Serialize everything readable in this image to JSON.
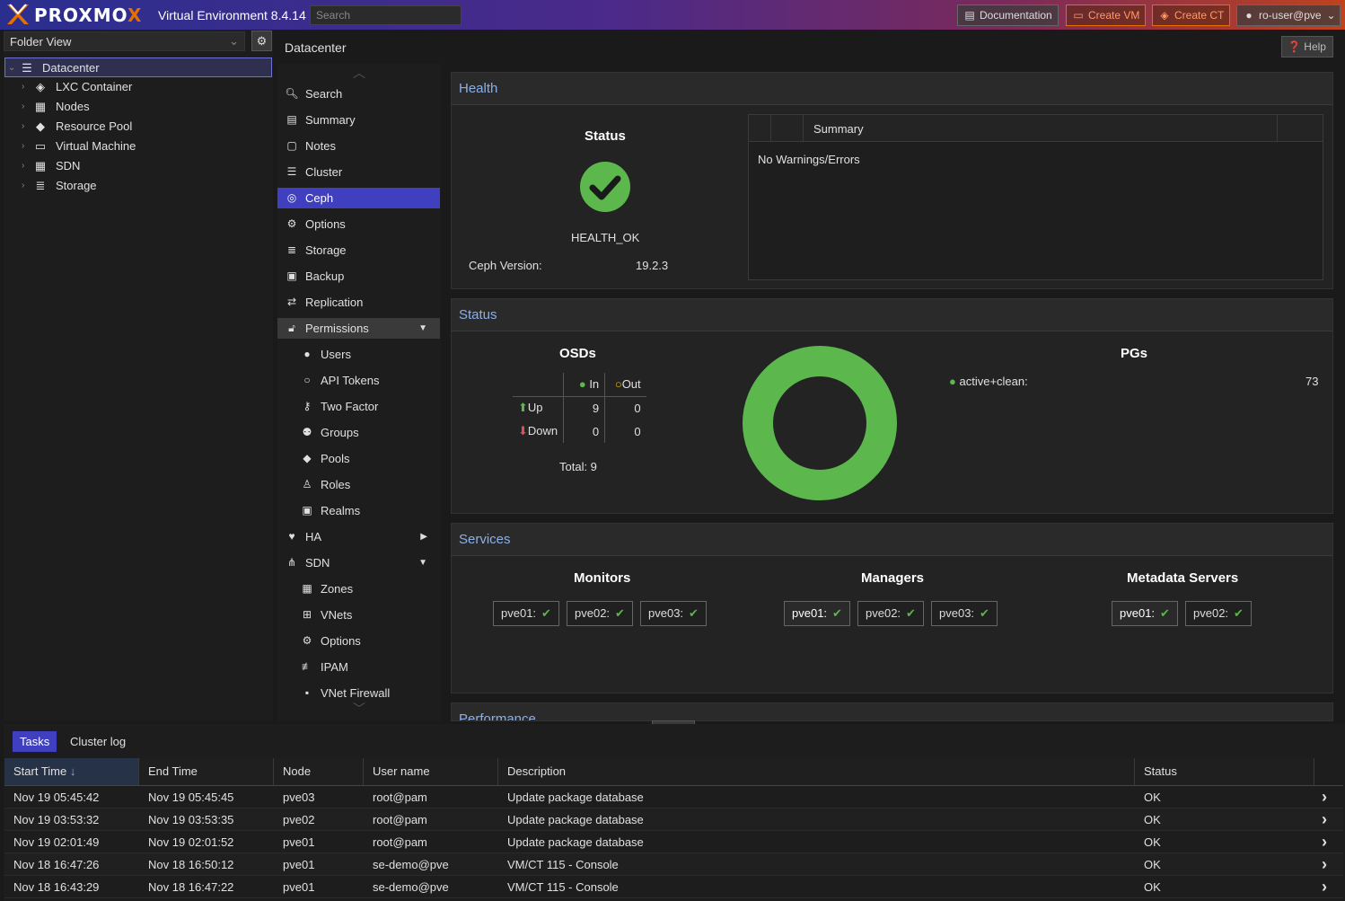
{
  "header": {
    "brand": "PROXMOX",
    "version": "Virtual Environment 8.4.14",
    "search_placeholder": "Search",
    "documentation": "Documentation",
    "create_vm": "Create VM",
    "create_ct": "Create CT",
    "user": "ro-user@pve"
  },
  "tree": {
    "view": "Folder View",
    "items": [
      {
        "label": "Datacenter",
        "icon": "server-rack-icon"
      },
      {
        "label": "LXC Container",
        "icon": "cube-icon"
      },
      {
        "label": "Nodes",
        "icon": "building-icon"
      },
      {
        "label": "Resource Pool",
        "icon": "tags-icon"
      },
      {
        "label": "Virtual Machine",
        "icon": "desktop-icon"
      },
      {
        "label": "SDN",
        "icon": "grid-icon"
      },
      {
        "label": "Storage",
        "icon": "database-icon"
      }
    ]
  },
  "content": {
    "title": "Datacenter",
    "help": "Help"
  },
  "nav": {
    "items": [
      {
        "label": "Search",
        "icon": "search-icon"
      },
      {
        "label": "Summary",
        "icon": "book-icon"
      },
      {
        "label": "Notes",
        "icon": "note-icon"
      },
      {
        "label": "Cluster",
        "icon": "server-icon"
      },
      {
        "label": "Ceph",
        "icon": "ceph-icon"
      },
      {
        "label": "Options",
        "icon": "gear-icon"
      },
      {
        "label": "Storage",
        "icon": "database-icon"
      },
      {
        "label": "Backup",
        "icon": "floppy-icon"
      },
      {
        "label": "Replication",
        "icon": "retweet-icon"
      },
      {
        "label": "Permissions",
        "icon": "unlock-icon"
      },
      {
        "label": "Users",
        "icon": "user-icon"
      },
      {
        "label": "API Tokens",
        "icon": "user-outline-icon"
      },
      {
        "label": "Two Factor",
        "icon": "key-icon"
      },
      {
        "label": "Groups",
        "icon": "users-icon"
      },
      {
        "label": "Pools",
        "icon": "tags-icon"
      },
      {
        "label": "Roles",
        "icon": "male-icon"
      },
      {
        "label": "Realms",
        "icon": "address-book-icon"
      },
      {
        "label": "HA",
        "icon": "heartbeat-icon"
      },
      {
        "label": "SDN",
        "icon": "network-icon"
      },
      {
        "label": "Zones",
        "icon": "grid-icon"
      },
      {
        "label": "VNets",
        "icon": "sitemap-icon"
      },
      {
        "label": "Options",
        "icon": "gear-icon"
      },
      {
        "label": "IPAM",
        "icon": "ipam-icon"
      },
      {
        "label": "VNet Firewall",
        "icon": "shield-icon"
      }
    ]
  },
  "health": {
    "title": "Health",
    "status_label": "Status",
    "status_value": "HEALTH_OK",
    "version_label": "Ceph Version:",
    "version_value": "19.2.3",
    "summary_header": "Summary",
    "summary_text": "No Warnings/Errors"
  },
  "status": {
    "title": "Status",
    "osds_label": "OSDs",
    "in_label": "In",
    "out_label": "Out",
    "up_label": "Up",
    "down_label": "Down",
    "up_in": "9",
    "up_out": "0",
    "down_in": "0",
    "down_out": "0",
    "total": "Total: 9",
    "pgs_label": "PGs",
    "pg_state": "active+clean:",
    "pg_count": "73",
    "pg_fraction": 1.0,
    "pg_color": "#5cb84d"
  },
  "services": {
    "title": "Services",
    "monitors_label": "Monitors",
    "managers_label": "Managers",
    "mds_label": "Metadata Servers",
    "monitors": [
      "pve01:",
      "pve02:",
      "pve03:"
    ],
    "managers": [
      "pve01:",
      "pve02:",
      "pve03:"
    ],
    "mds": [
      "pve01:",
      "pve02:"
    ]
  },
  "performance": {
    "title": "Performance"
  },
  "bottom": {
    "tabs": [
      "Tasks",
      "Cluster log"
    ],
    "columns": [
      "Start Time",
      "End Time",
      "Node",
      "User name",
      "Description",
      "Status"
    ],
    "rows": [
      [
        "Nov 19 05:45:42",
        "Nov 19 05:45:45",
        "pve03",
        "root@pam",
        "Update package database",
        "OK"
      ],
      [
        "Nov 19 03:53:32",
        "Nov 19 03:53:35",
        "pve02",
        "root@pam",
        "Update package database",
        "OK"
      ],
      [
        "Nov 19 02:01:49",
        "Nov 19 02:01:52",
        "pve01",
        "root@pam",
        "Update package database",
        "OK"
      ],
      [
        "Nov 18 16:47:26",
        "Nov 18 16:50:12",
        "pve01",
        "se-demo@pve",
        "VM/CT 115 - Console",
        "OK"
      ],
      [
        "Nov 18 16:43:29",
        "Nov 18 16:47:22",
        "pve01",
        "se-demo@pve",
        "VM/CT 115 - Console",
        "OK"
      ]
    ]
  }
}
